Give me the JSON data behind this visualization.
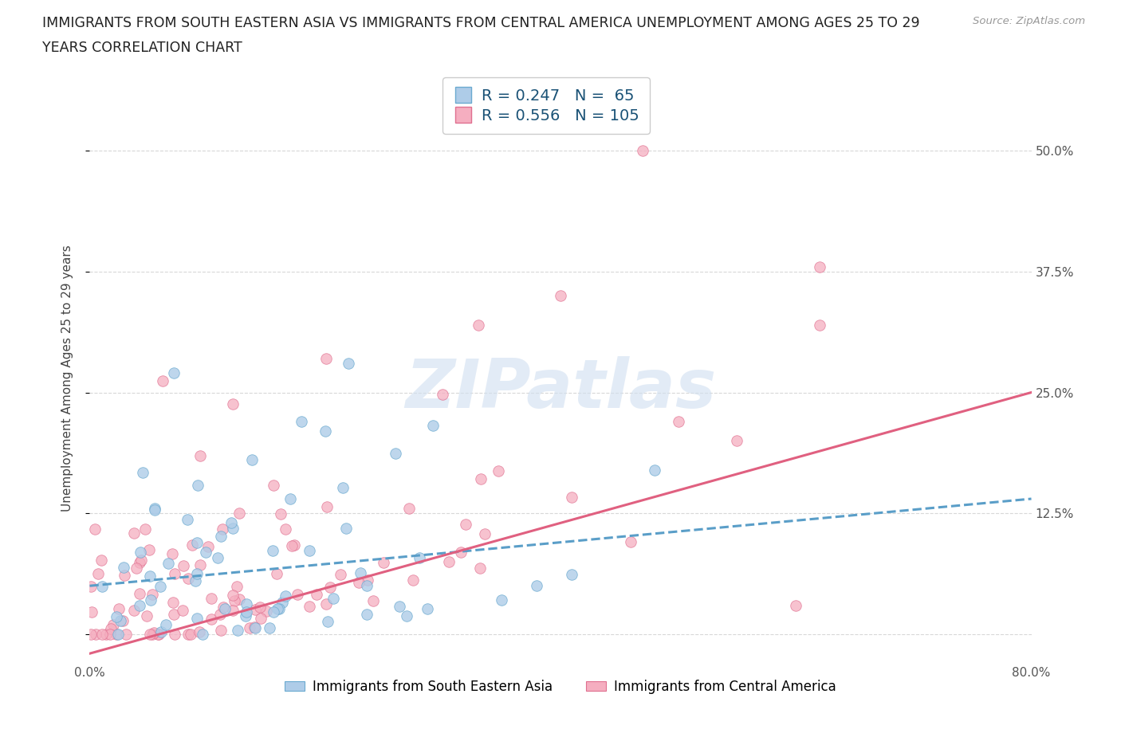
{
  "title_line1": "IMMIGRANTS FROM SOUTH EASTERN ASIA VS IMMIGRANTS FROM CENTRAL AMERICA UNEMPLOYMENT AMONG AGES 25 TO 29",
  "title_line2": "YEARS CORRELATION CHART",
  "source": "Source: ZipAtlas.com",
  "ylabel": "Unemployment Among Ages 25 to 29 years",
  "xlim": [
    0.0,
    0.8
  ],
  "ylim": [
    -0.03,
    0.56
  ],
  "yticks": [
    0.0,
    0.125,
    0.25,
    0.375,
    0.5
  ],
  "ytick_labels_right": [
    "",
    "12.5%",
    "25.0%",
    "37.5%",
    "50.0%"
  ],
  "R1": 0.247,
  "N1": 65,
  "R2": 0.556,
  "N2": 105,
  "series1_color": "#aecce8",
  "series1_edge": "#6baad0",
  "series2_color": "#f5aec0",
  "series2_edge": "#e07090",
  "line1_color": "#5a9ec8",
  "line2_color": "#e06080",
  "label1": "Immigrants from South Eastern Asia",
  "label2": "Immigrants from Central America",
  "legend_text_color": "#1a5276",
  "watermark": "ZIPatlas",
  "grid_color": "#d8d8d8",
  "title_color": "#222222",
  "source_color": "#999999"
}
